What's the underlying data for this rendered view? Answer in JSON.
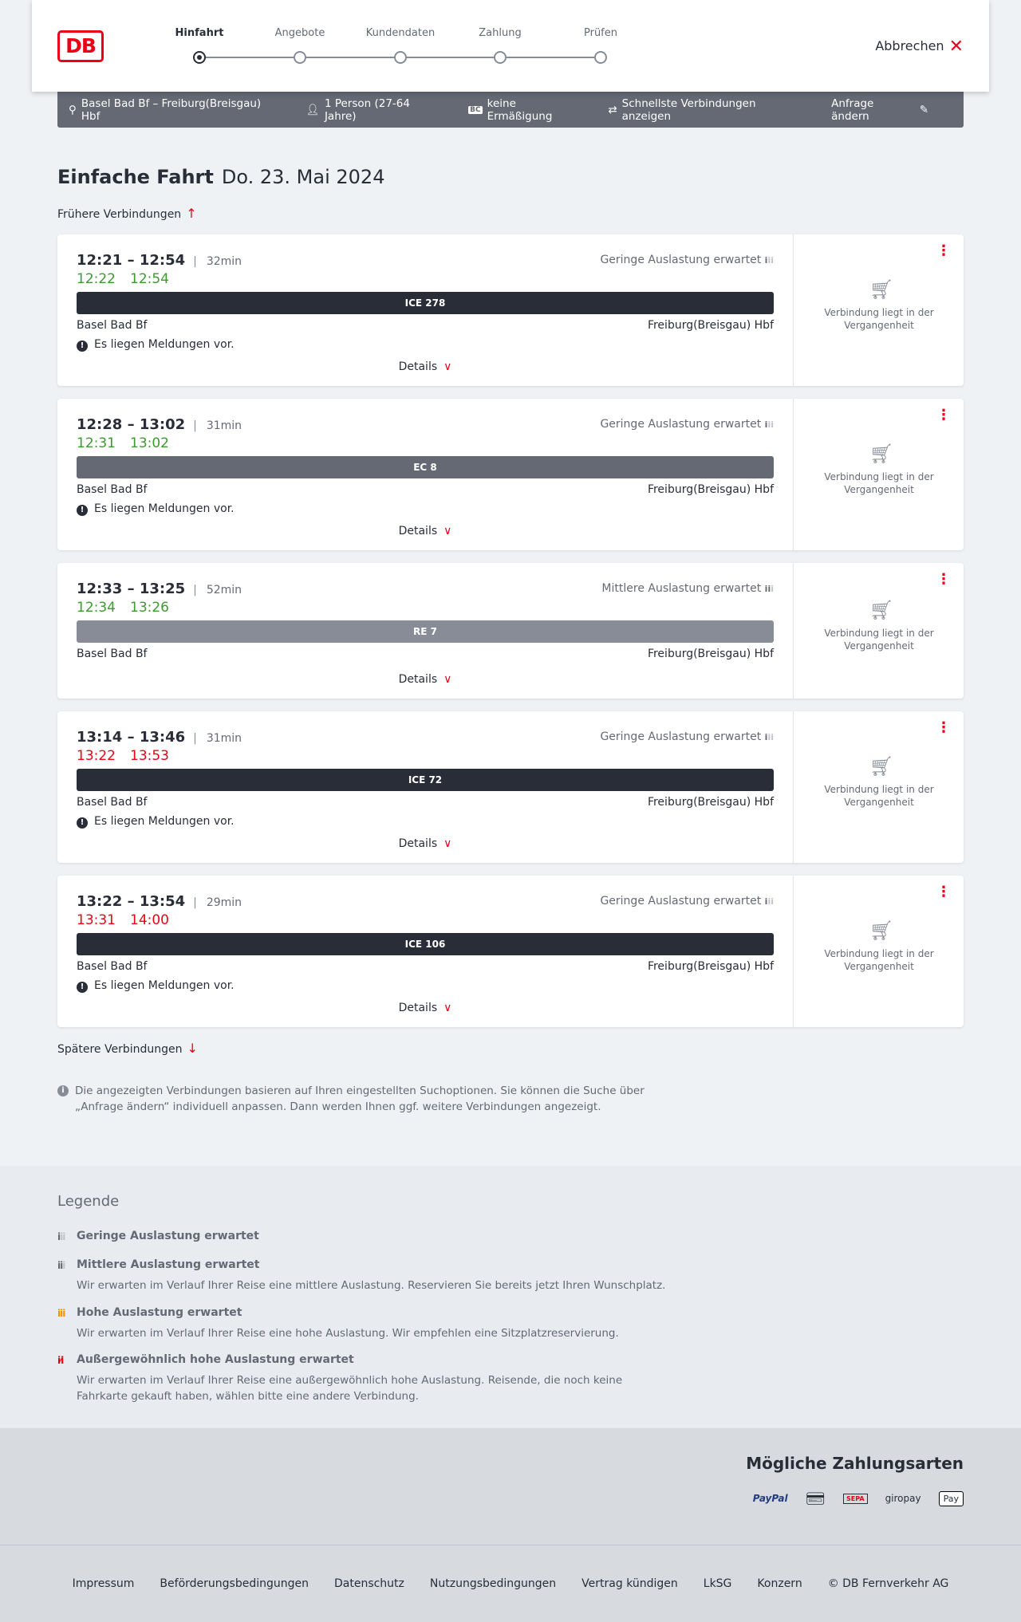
{
  "header": {
    "logo": "DB",
    "steps": [
      "Hinfahrt",
      "Angebote",
      "Kundendaten",
      "Zahlung",
      "Prüfen"
    ],
    "active_step": 0,
    "cancel": "Abbrechen"
  },
  "summary": {
    "route": "Basel Bad Bf – Freiburg(Breisgau) Hbf",
    "persons": "1 Person (27-64 Jahre)",
    "discount": "keine Ermäßigung",
    "fastest": "Schnellste Verbindungen anzeigen",
    "edit": "Anfrage ändern"
  },
  "title": {
    "type": "Einfache Fahrt",
    "date": "Do. 23. Mai 2024"
  },
  "earlier": "Frühere Verbindungen",
  "later": "Spätere Verbindungen",
  "details_label": "Details",
  "past_label": "Verbindung liegt in der Vergangenheit",
  "connections": [
    {
      "times": "12:21 – 12:54",
      "duration": "32min",
      "load": "Geringe Auslastung erwartet",
      "rt_dep": "12:22",
      "rt_arr": "12:54",
      "rt_color": "#3c9a2f",
      "train": "ICE 278",
      "train_color": "#282d37",
      "from": "Basel Bad Bf",
      "to": "Freiburg(Breisgau) Hbf",
      "message": "Es liegen Meldungen vor."
    },
    {
      "times": "12:28 – 13:02",
      "duration": "31min",
      "load": "Geringe Auslastung erwartet",
      "rt_dep": "12:31",
      "rt_arr": "13:02",
      "rt_color": "#3c9a2f",
      "train": "EC 8",
      "train_color": "#646973",
      "from": "Basel Bad Bf",
      "to": "Freiburg(Breisgau) Hbf",
      "message": "Es liegen Meldungen vor."
    },
    {
      "times": "12:33 – 13:25",
      "duration": "52min",
      "load": "Mittlere Auslastung erwartet",
      "rt_dep": "12:34",
      "rt_arr": "13:26",
      "rt_color": "#3c9a2f",
      "train": "RE 7",
      "train_color": "#878c96",
      "from": "Basel Bad Bf",
      "to": "Freiburg(Breisgau) Hbf",
      "message": ""
    },
    {
      "times": "13:14 – 13:46",
      "duration": "31min",
      "load": "Geringe Auslastung erwartet",
      "rt_dep": "13:22",
      "rt_arr": "13:53",
      "rt_color": "#ec0016",
      "train": "ICE 72",
      "train_color": "#282d37",
      "from": "Basel Bad Bf",
      "to": "Freiburg(Breisgau) Hbf",
      "message": "Es liegen Meldungen vor."
    },
    {
      "times": "13:22 – 13:54",
      "duration": "29min",
      "load": "Geringe Auslastung erwartet",
      "rt_dep": "13:31",
      "rt_arr": "14:00",
      "rt_color": "#ec0016",
      "train": "ICE 106",
      "train_color": "#282d37",
      "from": "Basel Bad Bf",
      "to": "Freiburg(Breisgau) Hbf",
      "message": "Es liegen Meldungen vor."
    }
  ],
  "info": "Die angezeigten Verbindungen basieren auf Ihren eingestellten Suchoptionen. Sie können die Suche über „Anfrage ändern“ individuell anpassen. Dann werden Ihnen ggf. weitere Verbindungen angezeigt.",
  "legend": {
    "title": "Legende",
    "items": [
      {
        "title": "Geringe Auslastung erwartet",
        "desc": "",
        "color": "#646973"
      },
      {
        "title": "Mittlere Auslastung erwartet",
        "desc": "Wir erwarten im Verlauf Ihrer Reise eine mittlere Auslastung. Reservieren Sie bereits jetzt Ihren Wunschplatz.",
        "color": "#646973"
      },
      {
        "title": "Hohe Auslastung erwartet",
        "desc": "Wir erwarten im Verlauf Ihrer Reise eine hohe Auslastung. Wir empfehlen eine Sitzplatzreservierung.",
        "color": "#f39200"
      },
      {
        "title": "Außergewöhnlich hohe Auslastung erwartet",
        "desc": "Wir erwarten im Verlauf Ihrer Reise eine außergewöhnlich hohe Auslastung. Reisende, die noch keine Fahrkarte gekauft haben, wählen bitte eine andere Verbindung.",
        "color": "#ec0016"
      }
    ]
  },
  "payment": {
    "title": "Mögliche Zahlungsarten",
    "methods": [
      "PayPal",
      "Kreditkarte",
      "SEPA",
      "giropay",
      "Pay"
    ]
  },
  "footer": [
    "Impressum",
    "Beförderungsbedingungen",
    "Datenschutz",
    "Nutzungsbedingungen",
    "Vertrag kündigen",
    "LkSG",
    "Konzern",
    "© DB Fernverkehr AG"
  ]
}
